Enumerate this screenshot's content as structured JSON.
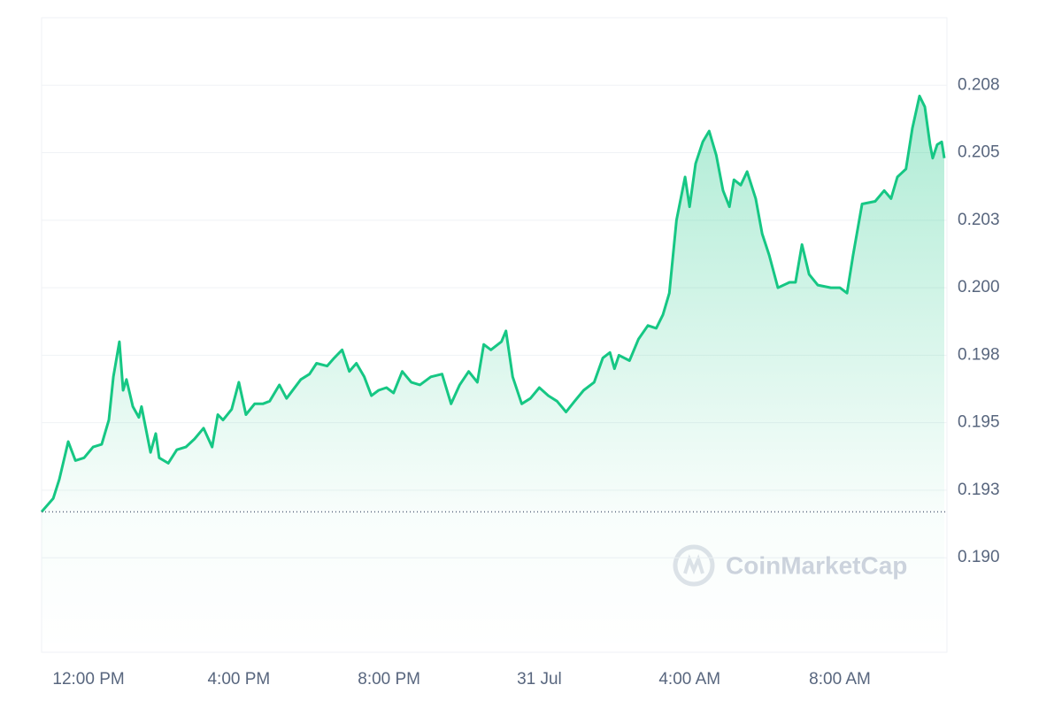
{
  "chart_data": {
    "type": "area",
    "watermark": "CoinMarketCap",
    "x": [
      10.75,
      11.06,
      11.22,
      11.46,
      11.65,
      11.88,
      12.12,
      12.35,
      12.54,
      12.66,
      12.82,
      12.92,
      13.01,
      13.18,
      13.34,
      13.41,
      13.65,
      13.79,
      13.88,
      14.12,
      14.35,
      14.59,
      14.82,
      15.06,
      15.29,
      15.44,
      15.58,
      15.81,
      16.0,
      16.19,
      16.42,
      16.64,
      16.82,
      17.08,
      17.27,
      17.65,
      17.88,
      18.07,
      18.35,
      18.54,
      18.75,
      18.94,
      19.13,
      19.34,
      19.53,
      19.72,
      19.93,
      20.12,
      20.35,
      20.59,
      20.82,
      21.11,
      21.41,
      21.65,
      21.88,
      22.12,
      22.35,
      22.52,
      22.71,
      22.99,
      23.11,
      23.29,
      23.53,
      23.76,
      24.0,
      24.24,
      24.47,
      24.71,
      24.94,
      25.18,
      25.46,
      25.69,
      25.88,
      26.0,
      26.12,
      26.4,
      26.64,
      26.89,
      27.11,
      27.29,
      27.46,
      27.65,
      27.88,
      28.0,
      28.16,
      28.35,
      28.52,
      28.71,
      28.89,
      29.06,
      29.18,
      29.36,
      29.53,
      29.76,
      29.93,
      30.12,
      30.35,
      30.66,
      30.82,
      30.99,
      31.18,
      31.41,
      31.76,
      32.0,
      32.19,
      32.35,
      32.59,
      32.94,
      33.18,
      33.36,
      33.53,
      33.76,
      33.93,
      34.12,
      34.26,
      34.4,
      34.47,
      34.59,
      34.71,
      34.78
    ],
    "series": [
      {
        "color": "#16c784",
        "values": [
          0.1917,
          0.1922,
          0.1929,
          0.1943,
          0.1936,
          0.1937,
          0.1941,
          0.1942,
          0.1951,
          0.1967,
          0.198,
          0.1962,
          0.1966,
          0.1956,
          0.1952,
          0.1956,
          0.1939,
          0.1946,
          0.1937,
          0.1935,
          0.194,
          0.1941,
          0.1944,
          0.1948,
          0.1941,
          0.1953,
          0.1951,
          0.1955,
          0.1965,
          0.1953,
          0.1957,
          0.1957,
          0.1958,
          0.1964,
          0.1959,
          0.1966,
          0.1968,
          0.1972,
          0.1971,
          0.1974,
          0.1977,
          0.1969,
          0.1972,
          0.1967,
          0.196,
          0.1962,
          0.1963,
          0.1961,
          0.1969,
          0.1965,
          0.1964,
          0.1967,
          0.1968,
          0.1957,
          0.1964,
          0.1969,
          0.1965,
          0.1979,
          0.1977,
          0.198,
          0.1984,
          0.1967,
          0.1957,
          0.1959,
          0.1963,
          0.196,
          0.1958,
          0.1954,
          0.1958,
          0.1962,
          0.1965,
          0.1974,
          0.1976,
          0.197,
          0.1975,
          0.1973,
          0.1981,
          0.1986,
          0.1985,
          0.199,
          0.1998,
          0.2025,
          0.2041,
          0.203,
          0.2046,
          0.2054,
          0.2058,
          0.2049,
          0.2036,
          0.203,
          0.204,
          0.2038,
          0.2043,
          0.2033,
          0.202,
          0.2012,
          0.2,
          0.2002,
          0.2002,
          0.2016,
          0.2005,
          0.2001,
          0.2,
          0.2,
          0.1998,
          0.2012,
          0.2031,
          0.2032,
          0.2036,
          0.2033,
          0.2041,
          0.2044,
          0.2059,
          0.2071,
          0.2067,
          0.2053,
          0.2048,
          0.2053,
          0.2054,
          0.2048
        ]
      }
    ],
    "reference_line": 0.1917,
    "xlim": [
      10.75,
      34.85
    ],
    "xticks": [
      {
        "value": 12,
        "label": "12:00 PM"
      },
      {
        "value": 16,
        "label": "4:00 PM"
      },
      {
        "value": 20,
        "label": "8:00 PM"
      },
      {
        "value": 24,
        "label": "31 Jul"
      },
      {
        "value": 28,
        "label": "4:00 AM"
      },
      {
        "value": 32,
        "label": "8:00 AM"
      }
    ],
    "ylim": [
      0.1865,
      0.21
    ],
    "yticks": [
      {
        "value": 0.19,
        "label": "0.190"
      },
      {
        "value": 0.1925,
        "label": "0.193"
      },
      0.195,
      {
        "value": 0.1975,
        "label": "0.198"
      },
      {
        "value": 0.2,
        "label": "0.200"
      },
      0.205,
      {
        "value": 0.2025,
        "label": "0.203"
      },
      {
        "value": 0.2075,
        "label": "0.208"
      }
    ],
    "grid": true
  }
}
